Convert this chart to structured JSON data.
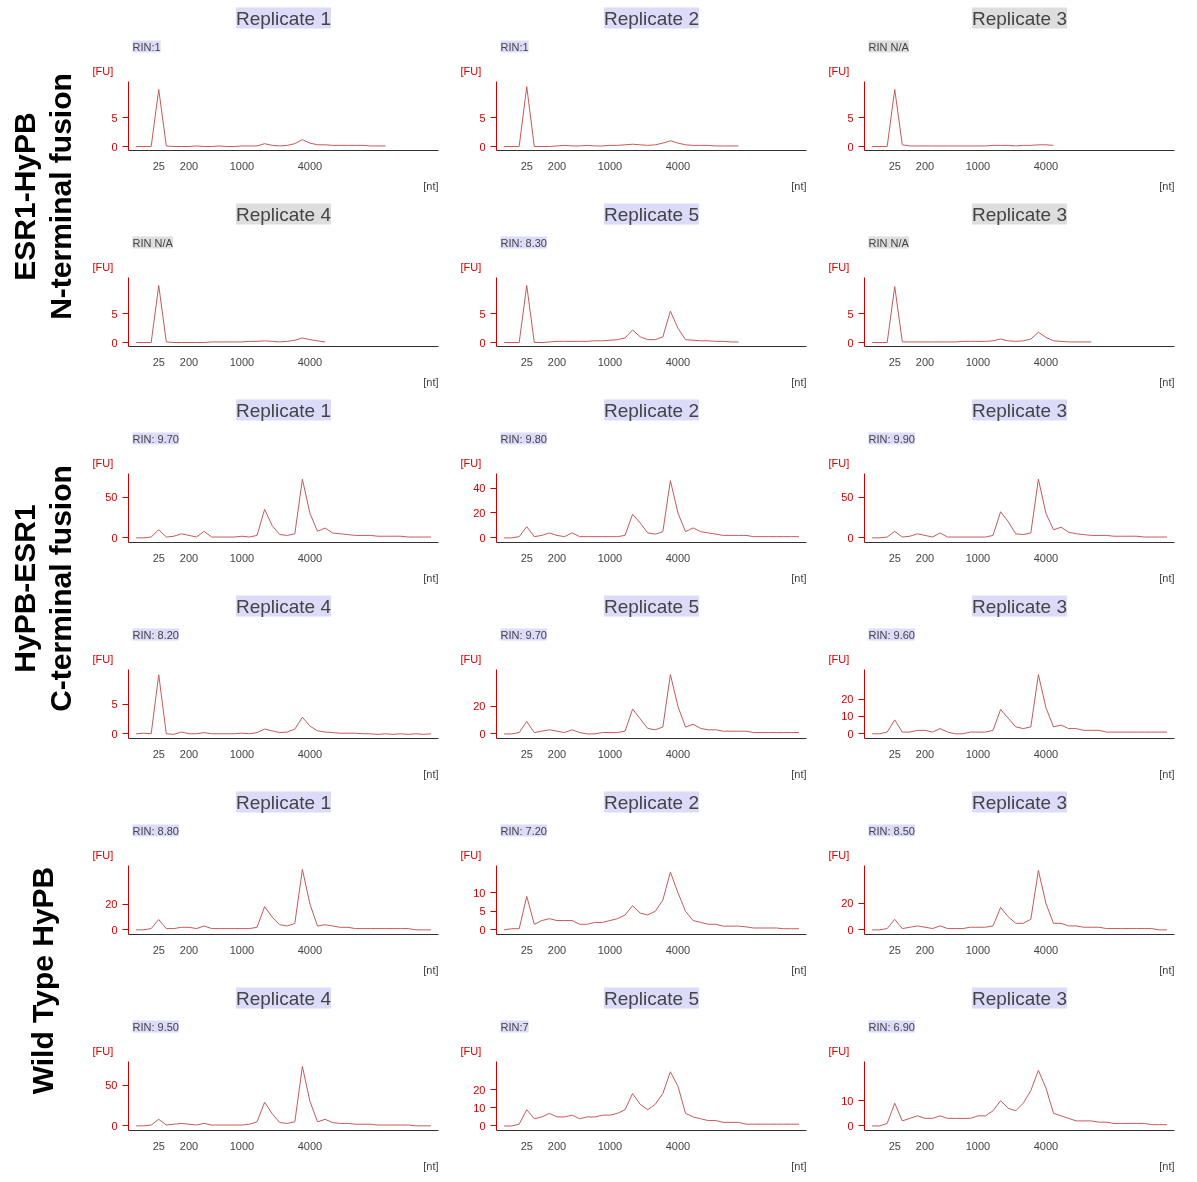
{
  "chart_data": [
    {
      "type": "line",
      "title": "Replicate 1",
      "subtitle": "ESR1-HyPB\nN-terminal fusion",
      "annotations": [
        "RIN:1"
      ],
      "xlabel": "[nt]",
      "ylabel": "[FU]",
      "color": "#c55a5a",
      "categories": [
        null,
        null,
        null,
        "25",
        null,
        null,
        null,
        "200",
        null,
        null,
        null,
        null,
        null,
        null,
        "1000",
        null,
        null,
        null,
        null,
        null,
        null,
        null,
        null,
        "4000",
        null,
        null,
        null,
        null,
        null,
        null,
        null,
        null,
        null,
        null,
        null,
        null,
        null,
        null,
        null,
        null
      ],
      "ylim": [
        -0.7,
        11.4
      ],
      "yticks": [
        0,
        5
      ],
      "values": [
        0,
        0,
        0,
        10,
        0.1,
        0,
        0,
        0,
        0.1,
        0,
        0,
        0.1,
        0,
        0,
        0.1,
        0.1,
        0.1,
        0.5,
        0.2,
        0.1,
        0.2,
        0.5,
        1.2,
        0.6,
        0.3,
        0.3,
        0.2,
        0.2,
        0.2,
        0.2,
        0.2,
        0.1,
        0.1,
        0.1,
        null,
        null,
        null,
        null,
        null,
        null
      ]
    },
    {
      "type": "line",
      "title": "Replicate 2",
      "annotations": [
        "RIN:1"
      ],
      "xlabel": "[nt]",
      "ylabel": "[FU]",
      "color": "#c55a5a",
      "categories": [
        null,
        null,
        null,
        "25",
        null,
        null,
        null,
        "200",
        null,
        null,
        null,
        null,
        null,
        null,
        "1000",
        null,
        null,
        null,
        null,
        null,
        null,
        null,
        null,
        "4000",
        null,
        null,
        null,
        null,
        null,
        null,
        null,
        null,
        null,
        null,
        null,
        null,
        null,
        null,
        null,
        null
      ],
      "ylim": [
        -0.7,
        11.4
      ],
      "yticks": [
        0,
        5
      ],
      "values": [
        0,
        0,
        0,
        10.5,
        0,
        0,
        0,
        0.1,
        0.2,
        0.1,
        0.1,
        0.2,
        0.1,
        0.1,
        0.2,
        0.2,
        0.3,
        0.4,
        0.3,
        0.2,
        0.3,
        0.6,
        1.0,
        0.6,
        0.3,
        0.2,
        0.2,
        0.2,
        0.1,
        0.1,
        0.1,
        0.1,
        null,
        null,
        null,
        null,
        null,
        null,
        null,
        null
      ]
    },
    {
      "type": "line",
      "title": "Replicate 3",
      "annotations": [
        "RIN N/A"
      ],
      "xlabel": "[nt]",
      "ylabel": "[FU]",
      "color": "#c55a5a",
      "categories": [
        null,
        null,
        null,
        "25",
        null,
        null,
        null,
        "200",
        null,
        null,
        null,
        null,
        null,
        null,
        "1000",
        null,
        null,
        null,
        null,
        null,
        null,
        null,
        null,
        "4000",
        null,
        null,
        null,
        null,
        null,
        null,
        null,
        null,
        null,
        null,
        null,
        null,
        null,
        null,
        null,
        null
      ],
      "ylim": [
        -0.7,
        11.4
      ],
      "yticks": [
        0,
        5
      ],
      "values": [
        0,
        0,
        0,
        10,
        0.3,
        0.1,
        0.1,
        0.1,
        0.1,
        0.1,
        0.1,
        0.1,
        0.1,
        0.1,
        0.1,
        0.1,
        0.2,
        0.2,
        0.2,
        0.1,
        0.2,
        0.2,
        0.3,
        0.3,
        0.2,
        null,
        null,
        null,
        null,
        null,
        null,
        null,
        null,
        null,
        null,
        null,
        null,
        null,
        null,
        null
      ]
    },
    {
      "type": "line",
      "title": "Replicate 4",
      "annotations": [
        "RIN N/A"
      ],
      "xlabel": "[nt]",
      "ylabel": "[FU]",
      "color": "#c55a5a",
      "categories": [
        null,
        null,
        null,
        "25",
        null,
        null,
        null,
        "200",
        null,
        null,
        null,
        null,
        null,
        null,
        "1000",
        null,
        null,
        null,
        null,
        null,
        null,
        null,
        null,
        "4000",
        null,
        null,
        null,
        null,
        null,
        null,
        null,
        null,
        null,
        null,
        null,
        null,
        null,
        null,
        null,
        null
      ],
      "ylim": [
        -0.7,
        11.4
      ],
      "yticks": [
        0,
        5
      ],
      "values": [
        0,
        0,
        0,
        10,
        0.1,
        0,
        0,
        0,
        0,
        0,
        0.1,
        0.1,
        0.1,
        0.1,
        0.1,
        0.2,
        0.2,
        0.3,
        0.2,
        0.1,
        0.2,
        0.4,
        0.8,
        0.5,
        0.3,
        0.1,
        null,
        null,
        null,
        null,
        null,
        null,
        null,
        null,
        null,
        null,
        null,
        null,
        null,
        null
      ]
    },
    {
      "type": "line",
      "title": "Replicate 5",
      "annotations": [
        "RIN: 8.30"
      ],
      "xlabel": "[nt]",
      "ylabel": "[FU]",
      "color": "#c55a5a",
      "categories": [
        null,
        null,
        null,
        "25",
        null,
        null,
        null,
        "200",
        null,
        null,
        null,
        null,
        null,
        null,
        "1000",
        null,
        null,
        null,
        null,
        null,
        null,
        null,
        null,
        "4000",
        null,
        null,
        null,
        null,
        null,
        null,
        null,
        null,
        null,
        null,
        null,
        null,
        null,
        null,
        null,
        null
      ],
      "ylim": [
        -0.7,
        11.4
      ],
      "yticks": [
        0,
        5
      ],
      "values": [
        0,
        0,
        0,
        10,
        0,
        0,
        0.1,
        0.2,
        0.2,
        0.2,
        0.2,
        0.2,
        0.3,
        0.3,
        0.4,
        0.5,
        0.8,
        2.2,
        1.0,
        0.5,
        0.5,
        1.0,
        5.5,
        2.5,
        0.5,
        0.4,
        0.3,
        0.3,
        0.2,
        0.2,
        0.1,
        0.1,
        null,
        null,
        null,
        null,
        null,
        null,
        null,
        null
      ]
    },
    {
      "type": "line",
      "title": "Replicate 3",
      "annotations": [
        "RIN N/A"
      ],
      "xlabel": "[nt]",
      "ylabel": "[FU]",
      "color": "#c55a5a",
      "categories": [
        null,
        null,
        null,
        "25",
        null,
        null,
        null,
        "200",
        null,
        null,
        null,
        null,
        null,
        null,
        "1000",
        null,
        null,
        null,
        null,
        null,
        null,
        null,
        null,
        "4000",
        null,
        null,
        null,
        null,
        null,
        null,
        null,
        null,
        null,
        null,
        null,
        null,
        null,
        null,
        null,
        null
      ],
      "ylim": [
        -0.7,
        11.4
      ],
      "yticks": [
        0,
        5
      ],
      "values": [
        0,
        0,
        0,
        9.8,
        0.1,
        0.1,
        0.1,
        0.1,
        0.1,
        0.1,
        0.1,
        0.1,
        0.2,
        0.2,
        0.2,
        0.2,
        0.3,
        0.6,
        0.3,
        0.2,
        0.3,
        0.6,
        1.8,
        0.9,
        0.3,
        0.2,
        0.1,
        0.1,
        0.1,
        0.1,
        null,
        null,
        null,
        null,
        null,
        null,
        null,
        null,
        null,
        null
      ]
    },
    {
      "type": "line",
      "title": "Replicate 1",
      "subtitle": "HyPB-ESR1\nC-terminal fusion",
      "annotations": [
        "RIN: 9.70"
      ],
      "xlabel": "[nt]",
      "ylabel": "[FU]",
      "color": "#c55a5a",
      "categories": [
        null,
        null,
        null,
        "25",
        null,
        null,
        null,
        "200",
        null,
        null,
        null,
        null,
        null,
        null,
        "1000",
        null,
        null,
        null,
        null,
        null,
        null,
        null,
        null,
        "4000",
        null,
        null,
        null,
        null,
        null,
        null,
        null,
        null,
        null,
        null,
        null,
        null,
        null,
        null,
        null,
        null
      ],
      "ylim": [
        -5.7,
        79
      ],
      "yticks": [
        0,
        50
      ],
      "values": [
        0,
        0,
        1,
        10,
        1,
        2,
        5,
        3,
        1,
        8,
        1,
        1,
        1,
        1,
        2,
        1,
        3,
        35,
        15,
        4,
        3,
        5,
        72,
        30,
        8,
        12,
        6,
        5,
        4,
        3,
        3,
        3,
        2,
        2,
        2,
        2,
        1,
        1,
        1,
        1
      ]
    },
    {
      "type": "line",
      "title": "Replicate 2",
      "annotations": [
        "RIN: 9.80"
      ],
      "xlabel": "[nt]",
      "ylabel": "[FU]",
      "color": "#c55a5a",
      "categories": [
        null,
        null,
        null,
        "25",
        null,
        null,
        null,
        "200",
        null,
        null,
        null,
        null,
        null,
        null,
        "1000",
        null,
        null,
        null,
        null,
        null,
        null,
        null,
        null,
        "4000",
        null,
        null,
        null,
        null,
        null,
        null,
        null,
        null,
        null,
        null,
        null,
        null,
        null,
        null,
        null,
        null
      ],
      "ylim": [
        -3.7,
        51.7
      ],
      "yticks": [
        0,
        20,
        40
      ],
      "values": [
        0,
        0,
        1,
        9,
        1,
        2,
        4,
        2,
        1,
        4,
        1,
        1,
        1,
        1,
        1,
        1,
        2,
        19,
        12,
        4,
        3,
        5,
        46,
        20,
        5,
        8,
        5,
        4,
        3,
        2,
        2,
        2,
        2,
        1,
        1,
        1,
        1,
        1,
        1,
        1
      ]
    },
    {
      "type": "line",
      "title": "Replicate 3",
      "annotations": [
        "RIN: 9.90"
      ],
      "xlabel": "[nt]",
      "ylabel": "[FU]",
      "color": "#c55a5a",
      "categories": [
        null,
        null,
        null,
        "25",
        null,
        null,
        null,
        "200",
        null,
        null,
        null,
        null,
        null,
        null,
        "1000",
        null,
        null,
        null,
        null,
        null,
        null,
        null,
        null,
        "4000",
        null,
        null,
        null,
        null,
        null,
        null,
        null,
        null,
        null,
        null,
        null,
        null,
        null,
        null,
        null,
        null
      ],
      "ylim": [
        -5.7,
        79
      ],
      "yticks": [
        0,
        50
      ],
      "values": [
        0,
        0,
        1,
        8,
        1,
        2,
        5,
        3,
        1,
        6,
        1,
        1,
        1,
        1,
        1,
        1,
        3,
        32,
        20,
        5,
        4,
        6,
        72,
        30,
        10,
        13,
        7,
        5,
        4,
        3,
        3,
        3,
        2,
        2,
        2,
        2,
        1,
        1,
        1,
        1
      ]
    },
    {
      "type": "line",
      "title": "Replicate 4",
      "annotations": [
        "RIN: 8.20"
      ],
      "xlabel": "[nt]",
      "ylabel": "[FU]",
      "color": "#c55a5a",
      "categories": [
        null,
        null,
        null,
        "25",
        null,
        null,
        null,
        "200",
        null,
        null,
        null,
        null,
        null,
        null,
        "1000",
        null,
        null,
        null,
        null,
        null,
        null,
        null,
        null,
        "4000",
        null,
        null,
        null,
        null,
        null,
        null,
        null,
        null,
        null,
        null,
        null,
        null,
        null,
        null,
        null,
        null
      ],
      "ylim": [
        -0.8,
        10.9
      ],
      "yticks": [
        0,
        5
      ],
      "values": [
        0,
        0.1,
        0,
        10,
        0,
        -0.1,
        0.3,
        0,
        0,
        0.2,
        0,
        0,
        0,
        0,
        0.1,
        0,
        0.2,
        0.8,
        0.5,
        0.2,
        0.3,
        0.8,
        2.8,
        1.3,
        0.5,
        0.3,
        0.2,
        0.1,
        0.1,
        0.1,
        0,
        0,
        -0.1,
        0,
        -0.1,
        0,
        -0.1,
        0,
        -0.1,
        0
      ]
    },
    {
      "type": "line",
      "title": "Replicate 5",
      "annotations": [
        "RIN: 9.70"
      ],
      "xlabel": "[nt]",
      "ylabel": "[FU]",
      "color": "#c55a5a",
      "categories": [
        null,
        null,
        null,
        "25",
        null,
        null,
        null,
        "200",
        null,
        null,
        null,
        null,
        null,
        null,
        "1000",
        null,
        null,
        null,
        null,
        null,
        null,
        null,
        null,
        "4000",
        null,
        null,
        null,
        null,
        null,
        null,
        null,
        null,
        null,
        null,
        null,
        null,
        null,
        null,
        null,
        null
      ],
      "ylim": [
        -3.3,
        46.7
      ],
      "yticks": [
        0,
        20
      ],
      "values": [
        0,
        0,
        1,
        9,
        1,
        2,
        3,
        2,
        1,
        3,
        1,
        0,
        0,
        1,
        1,
        1,
        2,
        18,
        11,
        4,
        3,
        5,
        43,
        20,
        5,
        7,
        4,
        3,
        3,
        2,
        2,
        2,
        2,
        1,
        1,
        1,
        1,
        1,
        1,
        1
      ]
    },
    {
      "type": "line",
      "title": "Replicate 3",
      "annotations": [
        "RIN: 9.60"
      ],
      "xlabel": "[nt]",
      "ylabel": "[FU]",
      "color": "#c55a5a",
      "categories": [
        null,
        null,
        null,
        "25",
        null,
        null,
        null,
        "200",
        null,
        null,
        null,
        null,
        null,
        null,
        "1000",
        null,
        null,
        null,
        null,
        null,
        null,
        null,
        null,
        "4000",
        null,
        null,
        null,
        null,
        null,
        null,
        null,
        null,
        null,
        null,
        null,
        null,
        null,
        null,
        null,
        null
      ],
      "ylim": [
        -2.7,
        37
      ],
      "yticks": [
        0,
        10,
        20
      ],
      "values": [
        0,
        0,
        1,
        8,
        1,
        1,
        2,
        2,
        1,
        3,
        1,
        0,
        0,
        1,
        1,
        1,
        2,
        14,
        9,
        4,
        3,
        4,
        34,
        15,
        4,
        5,
        3,
        3,
        2,
        2,
        2,
        1,
        1,
        1,
        1,
        1,
        1,
        1,
        1,
        1
      ]
    },
    {
      "type": "line",
      "title": "Replicate 1",
      "subtitle": "Wild Type HyPB",
      "annotations": [
        "RIN: 8.80"
      ],
      "xlabel": "[nt]",
      "ylabel": "[FU]",
      "color": "#c55a5a",
      "categories": [
        null,
        null,
        null,
        "25",
        null,
        null,
        null,
        "200",
        null,
        null,
        null,
        null,
        null,
        null,
        "1000",
        null,
        null,
        null,
        null,
        null,
        null,
        null,
        null,
        "4000",
        null,
        null,
        null,
        null,
        null,
        null,
        null,
        null,
        null,
        null,
        null,
        null,
        null,
        null,
        null,
        null
      ],
      "ylim": [
        -3.6,
        50
      ],
      "yticks": [
        0,
        20
      ],
      "values": [
        0,
        0,
        1,
        8,
        1,
        1,
        2,
        2,
        1,
        3,
        1,
        1,
        1,
        1,
        1,
        1,
        2,
        18,
        10,
        4,
        3,
        5,
        47,
        20,
        3,
        4,
        3,
        2,
        2,
        1,
        1,
        1,
        1,
        1,
        1,
        1,
        1,
        0,
        0,
        0
      ]
    },
    {
      "type": "line",
      "title": "Replicate 2",
      "annotations": [
        "RIN: 7.20"
      ],
      "xlabel": "[nt]",
      "ylabel": "[FU]",
      "color": "#c55a5a",
      "categories": [
        null,
        null,
        null,
        "25",
        null,
        null,
        null,
        "200",
        null,
        null,
        null,
        null,
        null,
        null,
        "1000",
        null,
        null,
        null,
        null,
        null,
        null,
        null,
        null,
        "4000",
        null,
        null,
        null,
        null,
        null,
        null,
        null,
        null,
        null,
        null,
        null,
        null,
        null,
        null,
        null,
        null
      ],
      "ylim": [
        -1.25,
        17.3
      ],
      "yticks": [
        0,
        5,
        10
      ],
      "values": [
        0,
        0.3,
        0.3,
        9,
        1.5,
        2.5,
        3,
        2.5,
        2.5,
        2.5,
        1.5,
        1.5,
        2,
        2,
        2.5,
        3,
        4,
        6.5,
        4.5,
        4,
        5,
        8,
        15.5,
        10,
        5,
        2.5,
        2,
        1.5,
        1.5,
        1,
        1,
        1,
        0.8,
        0.5,
        0.5,
        0.5,
        0.5,
        0.3,
        0.3,
        0.3
      ]
    },
    {
      "type": "line",
      "title": "Replicate 3",
      "annotations": [
        "RIN: 8.50"
      ],
      "xlabel": "[nt]",
      "ylabel": "[FU]",
      "color": "#c55a5a",
      "categories": [
        null,
        null,
        null,
        "25",
        null,
        null,
        null,
        "200",
        null,
        null,
        null,
        null,
        null,
        null,
        "1000",
        null,
        null,
        null,
        null,
        null,
        null,
        null,
        null,
        "4000",
        null,
        null,
        null,
        null,
        null,
        null,
        null,
        null,
        null,
        null,
        null,
        null,
        null,
        null,
        null,
        null
      ],
      "ylim": [
        -3.5,
        48.8
      ],
      "yticks": [
        0,
        20
      ],
      "values": [
        0,
        0,
        1,
        8,
        1,
        2,
        3,
        2,
        1,
        3,
        1,
        1,
        1,
        2,
        2,
        2,
        3,
        17,
        10,
        5,
        5,
        8,
        45,
        20,
        5,
        5,
        3,
        3,
        2,
        2,
        2,
        1,
        1,
        1,
        1,
        1,
        1,
        1,
        0,
        0
      ]
    },
    {
      "type": "line",
      "title": "Replicate 4",
      "annotations": [
        "RIN: 9.50"
      ],
      "xlabel": "[nt]",
      "ylabel": "[FU]",
      "color": "#c55a5a",
      "categories": [
        null,
        null,
        null,
        "25",
        null,
        null,
        null,
        "200",
        null,
        null,
        null,
        null,
        null,
        null,
        "1000",
        null,
        null,
        null,
        null,
        null,
        null,
        null,
        null,
        "4000",
        null,
        null,
        null,
        null,
        null,
        null,
        null,
        null,
        null,
        null,
        null,
        null,
        null,
        null,
        null,
        null
      ],
      "ylim": [
        -5.7,
        79
      ],
      "yticks": [
        0,
        50
      ],
      "values": [
        0,
        0,
        1,
        8,
        1,
        2,
        3,
        2,
        1,
        3,
        1,
        1,
        1,
        1,
        1,
        2,
        5,
        29,
        15,
        4,
        3,
        5,
        73,
        30,
        5,
        8,
        4,
        3,
        3,
        2,
        2,
        2,
        1,
        1,
        1,
        1,
        1,
        0,
        0,
        0
      ]
    },
    {
      "type": "line",
      "title": "Replicate 5",
      "annotations": [
        "RIN:7"
      ],
      "xlabel": "[nt]",
      "ylabel": "[FU]",
      "color": "#c55a5a",
      "categories": [
        null,
        null,
        null,
        "25",
        null,
        null,
        null,
        "200",
        null,
        null,
        null,
        null,
        null,
        null,
        "1000",
        null,
        null,
        null,
        null,
        null,
        null,
        null,
        null,
        "4000",
        null,
        null,
        null,
        null,
        null,
        null,
        null,
        null,
        null,
        null,
        null,
        null,
        null,
        null,
        null,
        null
      ],
      "ylim": [
        -2.5,
        35.7
      ],
      "yticks": [
        0,
        10,
        20
      ],
      "values": [
        0,
        0,
        1,
        9,
        4,
        5,
        7,
        5,
        5,
        6,
        4,
        5,
        5,
        6,
        6,
        7,
        9,
        18,
        12,
        9,
        12,
        18,
        30,
        22,
        7,
        5,
        4,
        3,
        3,
        2,
        2,
        2,
        1,
        1,
        1,
        1,
        1,
        1,
        1,
        1
      ]
    },
    {
      "type": "line",
      "title": "Replicate 3",
      "annotations": [
        "RIN: 6.90"
      ],
      "xlabel": "[nt]",
      "ylabel": "[FU]",
      "color": "#c55a5a",
      "categories": [
        null,
        null,
        null,
        "25",
        null,
        null,
        null,
        "200",
        null,
        null,
        null,
        null,
        null,
        null,
        "1000",
        null,
        null,
        null,
        null,
        null,
        null,
        null,
        null,
        "4000",
        null,
        null,
        null,
        null,
        null,
        null,
        null,
        null,
        null,
        null,
        null,
        null,
        null,
        null,
        null,
        null
      ],
      "ylim": [
        -1.8,
        25.5
      ],
      "yticks": [
        0,
        10
      ],
      "values": [
        0,
        0,
        1,
        9,
        2,
        3,
        4,
        3,
        3,
        4,
        3,
        3,
        3,
        3,
        4,
        4,
        6,
        10,
        7,
        6,
        9,
        14,
        22,
        15,
        5,
        4,
        3,
        2,
        2,
        2,
        1.5,
        1.5,
        1,
        1,
        1,
        1,
        1,
        0.5,
        0.5,
        0.5
      ]
    }
  ]
}
